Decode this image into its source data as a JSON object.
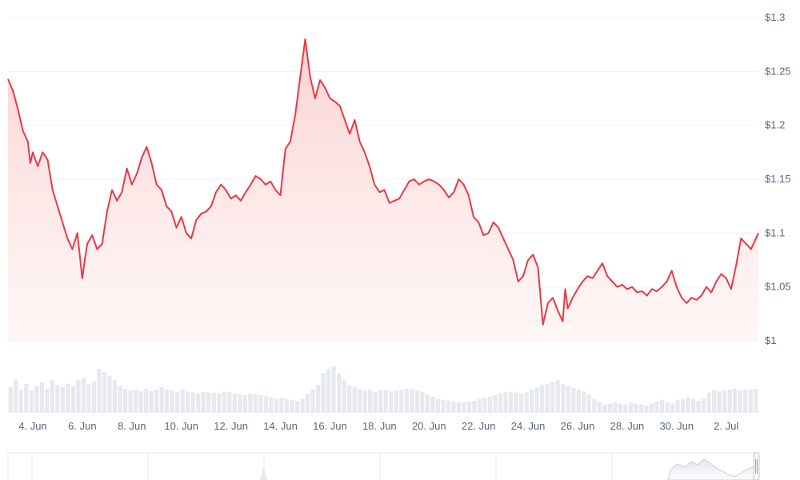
{
  "chart_data": {
    "type": "line",
    "title": "",
    "xlabel": "",
    "ylabel": "",
    "line_color": "#ea3943",
    "fill_color": "#fde2e2",
    "volume_color": "#e6e9ee",
    "grid": true,
    "ylim": [
      1.0,
      1.3
    ],
    "y_ticks": [
      "$1.3",
      "$1.25",
      "$1.2",
      "$1.15",
      "$1.1",
      "$1.05",
      "$1"
    ],
    "x_ticks": [
      "4. Jun",
      "6. Jun",
      "8. Jun",
      "10. Jun",
      "12. Jun",
      "14. Jun",
      "16. Jun",
      "18. Jun",
      "20. Jun",
      "22. Jun",
      "24. Jun",
      "26. Jun",
      "28. Jun",
      "30. Jun",
      "2. Jul"
    ],
    "x_range_days": [
      3.0,
      33.3
    ],
    "series": [
      {
        "x": [
          3.0,
          3.2,
          3.4,
          3.6,
          3.8,
          3.9,
          4.0,
          4.2,
          4.4,
          4.6,
          4.8,
          5.0,
          5.2,
          5.4,
          5.6,
          5.8,
          6.0,
          6.1,
          6.2,
          6.4,
          6.6,
          6.8,
          7.0,
          7.2,
          7.4,
          7.6,
          7.8,
          8.0,
          8.2,
          8.4,
          8.6,
          8.8,
          9.0,
          9.2,
          9.4,
          9.6,
          9.8,
          10.0,
          10.2,
          10.4,
          10.6,
          10.8,
          11.0,
          11.2,
          11.4,
          11.6,
          11.8,
          12.0,
          12.2,
          12.4,
          12.6,
          12.8,
          13.0,
          13.2,
          13.4,
          13.6,
          13.8,
          14.0,
          14.2,
          14.4,
          14.6,
          14.8,
          15.0,
          15.2,
          15.4,
          15.6,
          15.8,
          16.0,
          16.2,
          16.4,
          16.6,
          16.8,
          17.0,
          17.2,
          17.4,
          17.6,
          17.8,
          18.0,
          18.2,
          18.4,
          18.6,
          18.8,
          19.0,
          19.2,
          19.4,
          19.6,
          19.8,
          20.0,
          20.2,
          20.4,
          20.6,
          20.8,
          21.0,
          21.2,
          21.4,
          21.6,
          21.8,
          22.0,
          22.2,
          22.4,
          22.6,
          22.8,
          23.0,
          23.2,
          23.4,
          23.6,
          23.8,
          24.0,
          24.2,
          24.4,
          24.6,
          24.8,
          25.0,
          25.2,
          25.4,
          25.5,
          25.6,
          25.8,
          26.0,
          26.2,
          26.4,
          26.6,
          26.8,
          27.0,
          27.2,
          27.4,
          27.6,
          27.8,
          28.0,
          28.2,
          28.4,
          28.6,
          28.8,
          29.0,
          29.2,
          29.4,
          29.6,
          29.8,
          30.0,
          30.2,
          30.4,
          30.6,
          30.8,
          31.0,
          31.2,
          31.4,
          31.6,
          31.8,
          32.0,
          32.2,
          32.4,
          32.6,
          32.8,
          33.0,
          33.2,
          33.3
        ],
        "y": [
          1.243,
          1.232,
          1.215,
          1.195,
          1.185,
          1.165,
          1.175,
          1.162,
          1.175,
          1.168,
          1.14,
          1.125,
          1.11,
          1.095,
          1.085,
          1.1,
          1.058,
          1.075,
          1.09,
          1.098,
          1.085,
          1.09,
          1.12,
          1.14,
          1.13,
          1.138,
          1.16,
          1.145,
          1.155,
          1.17,
          1.18,
          1.165,
          1.145,
          1.14,
          1.125,
          1.12,
          1.105,
          1.115,
          1.1,
          1.095,
          1.112,
          1.118,
          1.12,
          1.125,
          1.138,
          1.145,
          1.14,
          1.132,
          1.135,
          1.13,
          1.138,
          1.145,
          1.153,
          1.15,
          1.145,
          1.148,
          1.14,
          1.135,
          1.178,
          1.185,
          1.21,
          1.245,
          1.28,
          1.245,
          1.225,
          1.242,
          1.235,
          1.225,
          1.222,
          1.218,
          1.205,
          1.192,
          1.205,
          1.185,
          1.175,
          1.162,
          1.145,
          1.138,
          1.14,
          1.128,
          1.13,
          1.132,
          1.14,
          1.148,
          1.15,
          1.145,
          1.148,
          1.15,
          1.148,
          1.145,
          1.14,
          1.133,
          1.138,
          1.15,
          1.145,
          1.135,
          1.115,
          1.11,
          1.098,
          1.1,
          1.11,
          1.105,
          1.095,
          1.085,
          1.075,
          1.055,
          1.06,
          1.075,
          1.08,
          1.068,
          1.015,
          1.035,
          1.04,
          1.028,
          1.018,
          1.048,
          1.03,
          1.04,
          1.048,
          1.055,
          1.06,
          1.058,
          1.065,
          1.072,
          1.06,
          1.055,
          1.05,
          1.052,
          1.048,
          1.05,
          1.045,
          1.046,
          1.042,
          1.048,
          1.046,
          1.05,
          1.055,
          1.065,
          1.05,
          1.04,
          1.035,
          1.04,
          1.038,
          1.042,
          1.05,
          1.045,
          1.055,
          1.062,
          1.058,
          1.048,
          1.07,
          1.095,
          1.09,
          1.085,
          1.095,
          1.1
        ]
      }
    ],
    "volume": [
      0.55,
      0.72,
      0.5,
      0.62,
      0.48,
      0.58,
      0.66,
      0.52,
      0.7,
      0.6,
      0.55,
      0.63,
      0.58,
      0.7,
      0.75,
      0.62,
      0.68,
      0.95,
      0.88,
      0.8,
      0.7,
      0.58,
      0.52,
      0.48,
      0.5,
      0.46,
      0.52,
      0.48,
      0.5,
      0.55,
      0.5,
      0.48,
      0.45,
      0.5,
      0.46,
      0.44,
      0.42,
      0.45,
      0.44,
      0.43,
      0.42,
      0.46,
      0.44,
      0.42,
      0.4,
      0.38,
      0.42,
      0.4,
      0.38,
      0.36,
      0.34,
      0.3,
      0.32,
      0.3,
      0.28,
      0.26,
      0.3,
      0.4,
      0.5,
      0.6,
      0.85,
      0.95,
      1.0,
      0.85,
      0.7,
      0.6,
      0.55,
      0.5,
      0.48,
      0.5,
      0.45,
      0.48,
      0.5,
      0.46,
      0.48,
      0.5,
      0.52,
      0.5,
      0.48,
      0.45,
      0.4,
      0.35,
      0.3,
      0.28,
      0.26,
      0.24,
      0.22,
      0.22,
      0.24,
      0.26,
      0.3,
      0.32,
      0.35,
      0.38,
      0.42,
      0.44,
      0.46,
      0.44,
      0.42,
      0.44,
      0.5,
      0.55,
      0.6,
      0.62,
      0.66,
      0.7,
      0.62,
      0.58,
      0.54,
      0.5,
      0.46,
      0.4,
      0.3,
      0.24,
      0.18,
      0.2,
      0.22,
      0.2,
      0.18,
      0.22,
      0.2,
      0.18,
      0.16,
      0.2,
      0.24,
      0.28,
      0.22,
      0.2,
      0.28,
      0.3,
      0.34,
      0.3,
      0.26,
      0.3,
      0.44,
      0.5,
      0.46,
      0.48,
      0.5,
      0.52,
      0.48,
      0.5,
      0.5,
      0.52
    ]
  }
}
